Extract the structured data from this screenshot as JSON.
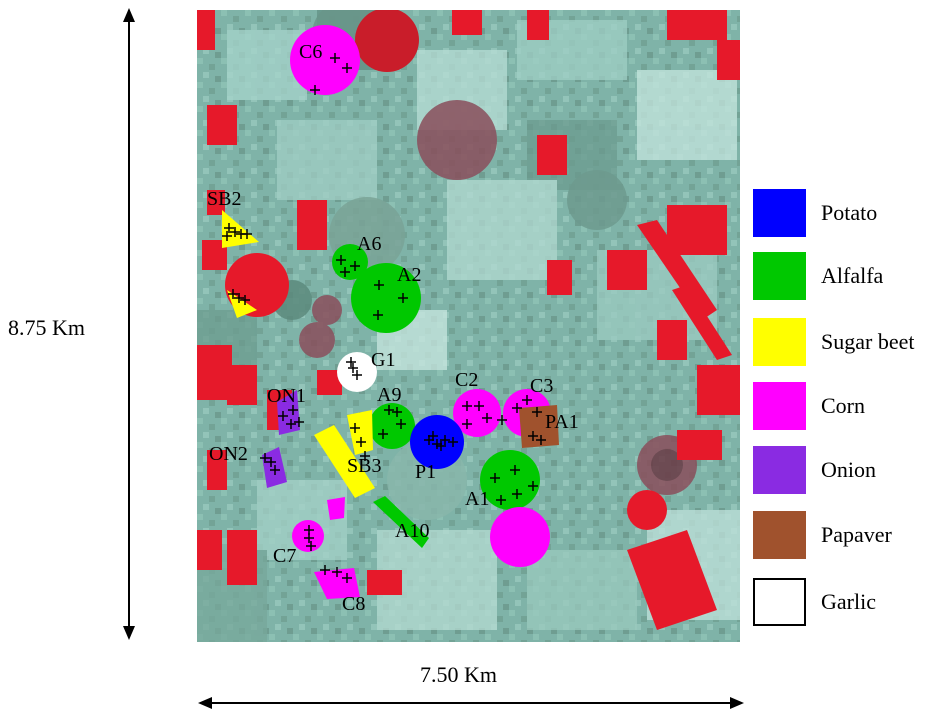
{
  "map": {
    "height_label": "8.75 Km",
    "width_label": "7.50 Km",
    "field_labels": {
      "C6": "C6",
      "SB2": "SB2",
      "A6": "A6",
      "A2": "A2",
      "G1": "G1",
      "ON1": "ON1",
      "ON2": "ON2",
      "A9": "A9",
      "C2": "C2",
      "C3": "C3",
      "PA1": "PA1",
      "SB3": "SB3",
      "P1": "P1",
      "A1": "A1",
      "A10": "A10",
      "C7": "C7",
      "C8": "C8"
    }
  },
  "legend": [
    {
      "label": "Potato",
      "color": "#0000ff"
    },
    {
      "label": "Alfalfa",
      "color": "#00c800"
    },
    {
      "label": "Sugar beet",
      "color": "#ffff00"
    },
    {
      "label": "Corn",
      "color": "#ff00ff"
    },
    {
      "label": "Onion",
      "color": "#8a2be2"
    },
    {
      "label": "Papaver",
      "color": "#a0522d"
    },
    {
      "label": "Garlic",
      "color": "#ffffff"
    }
  ]
}
